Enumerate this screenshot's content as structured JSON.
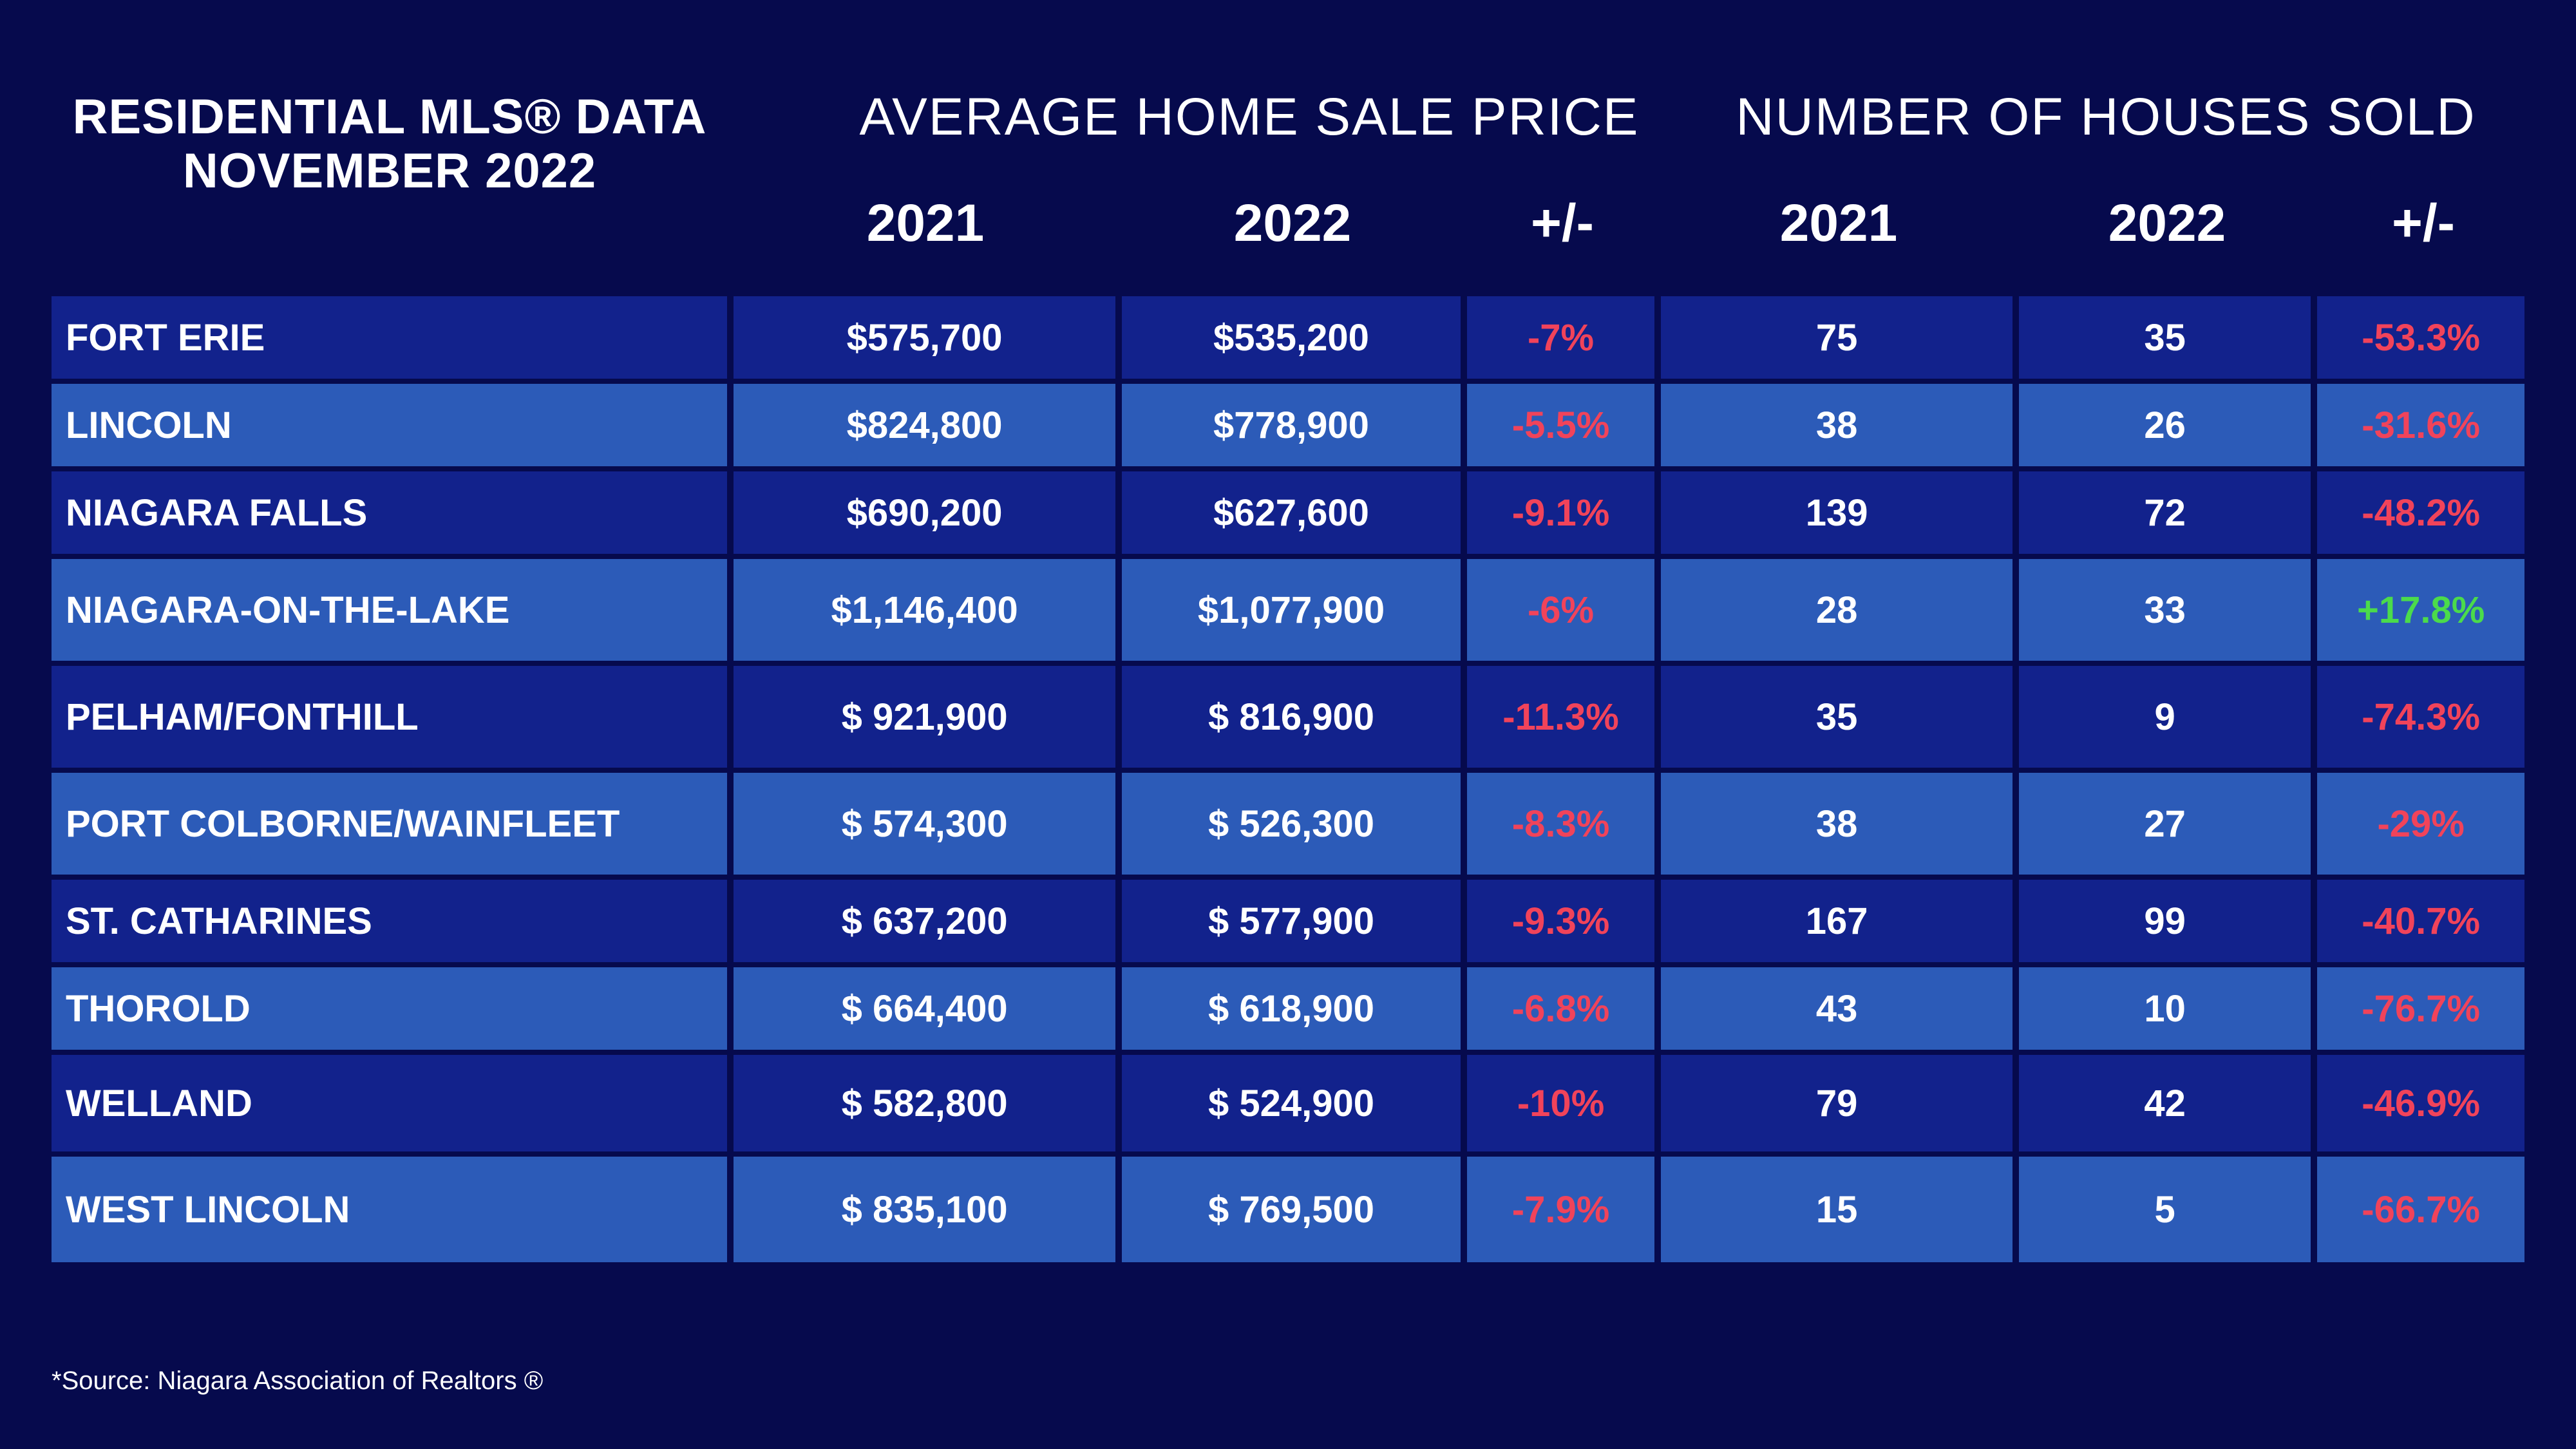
{
  "title": {
    "line1": "RESIDENTIAL MLS® DATA",
    "line2": "NOVEMBER 2022"
  },
  "groups": {
    "price": "AVERAGE HOME SALE PRICE",
    "sold": "NUMBER OF HOUSES SOLD"
  },
  "columns": {
    "price_2021": "2021",
    "price_2022": "2022",
    "price_change": "+/-",
    "sold_2021": "2021",
    "sold_2022": "2022",
    "sold_change": "+/-"
  },
  "colors": {
    "background": "#060a4d",
    "row_dark": "#12228c",
    "row_light": "#2c5bb8",
    "negative": "#f1435a",
    "positive": "#4bdb4b"
  },
  "rows": [
    {
      "city": "FORT ERIE",
      "price_2021": "$575,700",
      "price_2022": "$535,200",
      "price_change": "-7%",
      "sold_2021": "75",
      "sold_2022": "35",
      "sold_change": "-53.3%"
    },
    {
      "city": "LINCOLN",
      "price_2021": "$824,800",
      "price_2022": "$778,900",
      "price_change": "-5.5%",
      "sold_2021": "38",
      "sold_2022": "26",
      "sold_change": "-31.6%"
    },
    {
      "city": "NIAGARA FALLS",
      "price_2021": "$690,200",
      "price_2022": "$627,600",
      "price_change": "-9.1%",
      "sold_2021": "139",
      "sold_2022": "72",
      "sold_change": "-48.2%"
    },
    {
      "city": "NIAGARA-ON-THE-LAKE",
      "price_2021": "$1,146,400",
      "price_2022": "$1,077,900",
      "price_change": "-6%",
      "sold_2021": "28",
      "sold_2022": "33",
      "sold_change": "+17.8%"
    },
    {
      "city": "PELHAM/FONTHILL",
      "price_2021": "$ 921,900",
      "price_2022": "$ 816,900",
      "price_change": "-11.3%",
      "sold_2021": "35",
      "sold_2022": "9",
      "sold_change": "-74.3%"
    },
    {
      "city": "PORT COLBORNE/WAINFLEET",
      "price_2021": "$ 574,300",
      "price_2022": "$ 526,300",
      "price_change": "-8.3%",
      "sold_2021": "38",
      "sold_2022": "27",
      "sold_change": "-29%"
    },
    {
      "city": "ST. CATHARINES",
      "price_2021": "$ 637,200",
      "price_2022": "$ 577,900",
      "price_change": "-9.3%",
      "sold_2021": "167",
      "sold_2022": "99",
      "sold_change": "-40.7%"
    },
    {
      "city": "THOROLD",
      "price_2021": "$ 664,400",
      "price_2022": "$ 618,900",
      "price_change": "-6.8%",
      "sold_2021": "43",
      "sold_2022": "10",
      "sold_change": "-76.7%"
    },
    {
      "city": "WELLAND",
      "price_2021": "$ 582,800",
      "price_2022": "$ 524,900",
      "price_change": "-10%",
      "sold_2021": "79",
      "sold_2022": "42",
      "sold_change": "-46.9%"
    },
    {
      "city": "WEST LINCOLN",
      "price_2021": "$ 835,100",
      "price_2022": "$ 769,500",
      "price_change": "-7.9%",
      "sold_2021": "15",
      "sold_2022": "5",
      "sold_change": "-66.7%"
    }
  ],
  "source": "*Source: Niagara Association of Realtors ®"
}
